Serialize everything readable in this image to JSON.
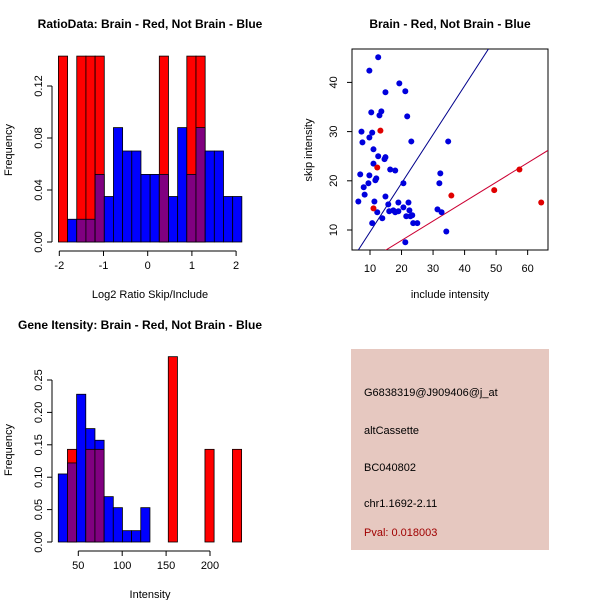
{
  "colors": {
    "red": "#ff0000",
    "blue": "#0000ff",
    "overlap": "#800080",
    "blue_line": "#00008b",
    "red_line": "#cc0033",
    "panel_bg": "#e6c8c0",
    "pval": "#a00000"
  },
  "chart_data": [
    {
      "type": "bar",
      "title": "RatioData: Brain - Red, Not Brain - Blue",
      "xlabel": "Log2 Ratio Skip/Include",
      "ylabel": "Frequency",
      "bin_start": -2.02,
      "bin_width": 0.2075,
      "series": [
        {
          "name": "Brain",
          "color": "red",
          "values": [
            0.143,
            0,
            0.143,
            0.143,
            0.143,
            0,
            0,
            0,
            0,
            0,
            0,
            0.143,
            0,
            0,
            0.143,
            0.143,
            0,
            0,
            0,
            0
          ]
        },
        {
          "name": "Not Brain",
          "color": "blue",
          "values": [
            0,
            0.0175,
            0.0175,
            0.0175,
            0.052,
            0.035,
            0.088,
            0.07,
            0.07,
            0.052,
            0.052,
            0.052,
            0.035,
            0.088,
            0.052,
            0.088,
            0.07,
            0.07,
            0.035,
            0.035
          ]
        }
      ],
      "xlim": [
        -2.2,
        2.2
      ],
      "ylim": [
        0,
        0.14
      ],
      "xticks": [
        "-2",
        "-1",
        "0",
        "1",
        "2"
      ],
      "yticks": [
        "0.00",
        "0.04",
        "0.08",
        "0.12"
      ]
    },
    {
      "type": "scatter",
      "title": "Brain - Red, Not Brain - Blue",
      "xlabel": "include intensity",
      "ylabel": "skip intensity",
      "xlim": [
        4.3,
        66.4
      ],
      "ylim": [
        5.9,
        46.8
      ],
      "xticks": [
        "10",
        "20",
        "30",
        "40",
        "50",
        "60"
      ],
      "yticks": [
        "10",
        "20",
        "30",
        "40"
      ],
      "series": [
        {
          "name": "Not Brain",
          "color": "blue",
          "points": [
            [
              12.6,
              45.1
            ],
            [
              9.8,
              42.4
            ],
            [
              19.3,
              39.8
            ],
            [
              14.9,
              38.0
            ],
            [
              21.2,
              38.2
            ],
            [
              10.4,
              33.9
            ],
            [
              13.6,
              34.1
            ],
            [
              13.0,
              33.3
            ],
            [
              21.8,
              33.1
            ],
            [
              7.3,
              30.0
            ],
            [
              10.7,
              29.8
            ],
            [
              9.8,
              28.8
            ],
            [
              7.6,
              27.8
            ],
            [
              23.1,
              28.0
            ],
            [
              34.8,
              28.0
            ],
            [
              11.1,
              26.4
            ],
            [
              12.6,
              25.0
            ],
            [
              14.9,
              24.8
            ],
            [
              14.6,
              24.4
            ],
            [
              11.1,
              23.5
            ],
            [
              16.4,
              22.3
            ],
            [
              18.0,
              22.1
            ],
            [
              6.9,
              21.3
            ],
            [
              9.8,
              21.1
            ],
            [
              12.0,
              20.5
            ],
            [
              11.7,
              20.1
            ],
            [
              32.3,
              21.5
            ],
            [
              8.0,
              18.7
            ],
            [
              9.5,
              19.5
            ],
            [
              20.6,
              19.5
            ],
            [
              32.0,
              19.5
            ],
            [
              8.3,
              17.2
            ],
            [
              14.9,
              16.8
            ],
            [
              6.3,
              15.8
            ],
            [
              11.4,
              15.8
            ],
            [
              15.8,
              15.2
            ],
            [
              19.0,
              15.6
            ],
            [
              22.2,
              15.6
            ],
            [
              20.6,
              14.6
            ],
            [
              16.1,
              13.8
            ],
            [
              17.4,
              14.0
            ],
            [
              18.0,
              13.6
            ],
            [
              19.0,
              13.8
            ],
            [
              22.5,
              14.0
            ],
            [
              12.3,
              13.6
            ],
            [
              31.4,
              14.2
            ],
            [
              32.7,
              13.6
            ],
            [
              21.5,
              12.8
            ],
            [
              22.8,
              12.8
            ],
            [
              23.4,
              13.0
            ],
            [
              13.9,
              12.4
            ],
            [
              10.7,
              11.4
            ],
            [
              23.7,
              11.4
            ],
            [
              25.0,
              11.4
            ],
            [
              34.2,
              9.7
            ],
            [
              21.2,
              7.5
            ]
          ]
        },
        {
          "name": "Brain",
          "color": "red",
          "points": [
            [
              13.3,
              30.2
            ],
            [
              12.3,
              22.7
            ],
            [
              11.1,
              14.4
            ],
            [
              35.8,
              17.0
            ],
            [
              49.4,
              18.1
            ],
            [
              57.4,
              22.3
            ],
            [
              64.3,
              15.6
            ]
          ]
        }
      ],
      "fit_lines": [
        {
          "name": "Not Brain fit",
          "color": "blue_line",
          "slope": 0.99,
          "intercept": -0.3
        },
        {
          "name": "Brain fit",
          "color": "red_line",
          "slope": 0.394,
          "intercept": 0.0
        }
      ]
    },
    {
      "type": "bar",
      "title": "Gene Itensity: Brain - Red, Not Brain - Blue",
      "xlabel": "Intensity",
      "ylabel": "Frequency",
      "bin_start": 27.2,
      "bin_width": 10.44,
      "series": [
        {
          "name": "Brain",
          "color": "red",
          "values": [
            0,
            0.143,
            0,
            0.143,
            0.143,
            0,
            0,
            0,
            0,
            0,
            0,
            0,
            0.286,
            0,
            0,
            0,
            0.143,
            0,
            0,
            0.143
          ]
        },
        {
          "name": "Not Brain",
          "color": "blue",
          "values": [
            0.105,
            0.122,
            0.228,
            0.175,
            0.157,
            0.07,
            0.053,
            0.0175,
            0.0175,
            0.053,
            0,
            0,
            0,
            0,
            0,
            0,
            0,
            0,
            0,
            0
          ]
        }
      ],
      "xlim": [
        20,
        240
      ],
      "ylim": [
        0,
        0.29
      ],
      "xticks": [
        "50",
        "100",
        "150",
        "200"
      ],
      "yticks": [
        "0.00",
        "0.05",
        "0.10",
        "0.15",
        "0.20",
        "0.25"
      ]
    }
  ],
  "info_panel": {
    "probe_id": "G6838319@J909406@j_at",
    "event_type": "altCassette",
    "accession": "BC040802",
    "location": "chr1.1692-2.11",
    "pval": "Pval: 0.018003"
  }
}
